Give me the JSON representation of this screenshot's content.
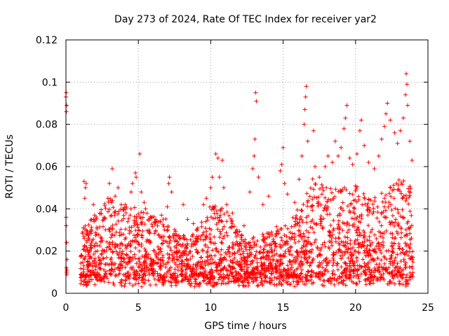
{
  "chart_data": {
    "type": "scatter",
    "title": "Day 273 of 2024, Rate Of TEC Index for receiver yar2",
    "xlabel": "GPS time / hours",
    "ylabel": "ROTI / TECUs",
    "xlim": [
      0,
      25
    ],
    "ylim": [
      0,
      0.12
    ],
    "xticks": [
      0,
      5,
      10,
      15,
      20,
      25
    ],
    "xtick_labels": [
      "0",
      "5",
      "10",
      "15",
      "20",
      "25"
    ],
    "yticks": [
      0,
      0.02,
      0.04,
      0.06,
      0.08,
      0.1,
      0.12
    ],
    "ytick_labels": [
      "0",
      "0.02",
      "0.04",
      "0.06",
      "0.08",
      "0.1",
      "0.12"
    ],
    "grid": true,
    "marker": "+",
    "series_color": "#ff0000",
    "series": [
      {
        "name": "ROTI",
        "points": [
          [
            0.0,
            0.093
          ],
          [
            0.02,
            0.095
          ],
          [
            0.05,
            0.089
          ],
          [
            0.03,
            0.086
          ],
          [
            0.01,
            0.036
          ],
          [
            0.02,
            0.032
          ],
          [
            0.04,
            0.012
          ],
          [
            0.05,
            0.01
          ],
          [
            0.06,
            0.009
          ],
          [
            0.07,
            0.011
          ],
          [
            0.08,
            0.016
          ],
          [
            0.05,
            0.024
          ],
          [
            1.2,
            0.031
          ],
          [
            1.25,
            0.053
          ],
          [
            1.3,
            0.045
          ],
          [
            1.35,
            0.05
          ],
          [
            1.4,
            0.052
          ],
          [
            1.9,
            0.042
          ],
          [
            2.6,
            0.035
          ],
          [
            2.9,
            0.045
          ],
          [
            3.0,
            0.052
          ],
          [
            3.2,
            0.059
          ],
          [
            3.4,
            0.046
          ],
          [
            3.6,
            0.05
          ],
          [
            4.1,
            0.042
          ],
          [
            4.5,
            0.048
          ],
          [
            4.6,
            0.052
          ],
          [
            4.8,
            0.057
          ],
          [
            4.85,
            0.055
          ],
          [
            5.1,
            0.066
          ],
          [
            5.2,
            0.048
          ],
          [
            5.4,
            0.043
          ],
          [
            5.5,
            0.04
          ],
          [
            6.2,
            0.035
          ],
          [
            6.6,
            0.037
          ],
          [
            7.0,
            0.041
          ],
          [
            7.1,
            0.052
          ],
          [
            7.15,
            0.055
          ],
          [
            7.3,
            0.048
          ],
          [
            8.1,
            0.042
          ],
          [
            8.4,
            0.035
          ],
          [
            8.8,
            0.033
          ],
          [
            9.5,
            0.042
          ],
          [
            9.7,
            0.045
          ],
          [
            10.0,
            0.05
          ],
          [
            10.1,
            0.055
          ],
          [
            10.35,
            0.066
          ],
          [
            10.5,
            0.064
          ],
          [
            10.6,
            0.055
          ],
          [
            10.8,
            0.063
          ],
          [
            10.9,
            0.05
          ],
          [
            11.1,
            0.042
          ],
          [
            11.5,
            0.038
          ],
          [
            12.3,
            0.032
          ],
          [
            12.7,
            0.048
          ],
          [
            12.9,
            0.059
          ],
          [
            13.0,
            0.065
          ],
          [
            13.05,
            0.073
          ],
          [
            13.1,
            0.095
          ],
          [
            13.15,
            0.091
          ],
          [
            13.3,
            0.055
          ],
          [
            13.6,
            0.042
          ],
          [
            14.0,
            0.046
          ],
          [
            14.8,
            0.058
          ],
          [
            14.9,
            0.061
          ],
          [
            15.0,
            0.069
          ],
          [
            15.1,
            0.052
          ],
          [
            15.3,
            0.047
          ],
          [
            15.8,
            0.043
          ],
          [
            16.1,
            0.054
          ],
          [
            16.3,
            0.065
          ],
          [
            16.45,
            0.08
          ],
          [
            16.5,
            0.087
          ],
          [
            16.55,
            0.093
          ],
          [
            16.6,
            0.098
          ],
          [
            16.7,
            0.072
          ],
          [
            17.1,
            0.077
          ],
          [
            17.2,
            0.06
          ],
          [
            17.5,
            0.055
          ],
          [
            17.9,
            0.06
          ],
          [
            18.1,
            0.065
          ],
          [
            18.4,
            0.062
          ],
          [
            18.6,
            0.072
          ],
          [
            18.8,
            0.065
          ],
          [
            19.0,
            0.069
          ],
          [
            19.2,
            0.078
          ],
          [
            19.3,
            0.083
          ],
          [
            19.4,
            0.089
          ],
          [
            19.6,
            0.064
          ],
          [
            19.8,
            0.061
          ],
          [
            20.1,
            0.066
          ],
          [
            20.3,
            0.077
          ],
          [
            20.4,
            0.082
          ],
          [
            20.6,
            0.07
          ],
          [
            20.9,
            0.062
          ],
          [
            21.3,
            0.059
          ],
          [
            21.6,
            0.065
          ],
          [
            21.8,
            0.073
          ],
          [
            22.0,
            0.079
          ],
          [
            22.1,
            0.085
          ],
          [
            22.2,
            0.09
          ],
          [
            22.4,
            0.082
          ],
          [
            22.7,
            0.076
          ],
          [
            22.9,
            0.071
          ],
          [
            23.1,
            0.077
          ],
          [
            23.3,
            0.083
          ],
          [
            23.45,
            0.094
          ],
          [
            23.5,
            0.104
          ],
          [
            23.55,
            0.099
          ],
          [
            23.6,
            0.089
          ],
          [
            23.75,
            0.072
          ],
          [
            23.9,
            0.063
          ]
        ],
        "dense_band": {
          "x_start": 1.0,
          "x_end": 24.0,
          "y_floor_min": 0.003,
          "y_floor_max": 0.009,
          "typical_upper": [
            [
              1.0,
              0.03
            ],
            [
              3.0,
              0.045
            ],
            [
              5.0,
              0.04
            ],
            [
              7.0,
              0.035
            ],
            [
              8.5,
              0.025
            ],
            [
              10.0,
              0.042
            ],
            [
              11.0,
              0.04
            ],
            [
              12.5,
              0.025
            ],
            [
              14.0,
              0.03
            ],
            [
              15.5,
              0.035
            ],
            [
              16.5,
              0.045
            ],
            [
              17.0,
              0.055
            ],
            [
              18.5,
              0.05
            ],
            [
              20.0,
              0.052
            ],
            [
              21.0,
              0.045
            ],
            [
              22.0,
              0.05
            ],
            [
              23.0,
              0.055
            ],
            [
              24.0,
              0.05
            ]
          ]
        }
      }
    ]
  }
}
